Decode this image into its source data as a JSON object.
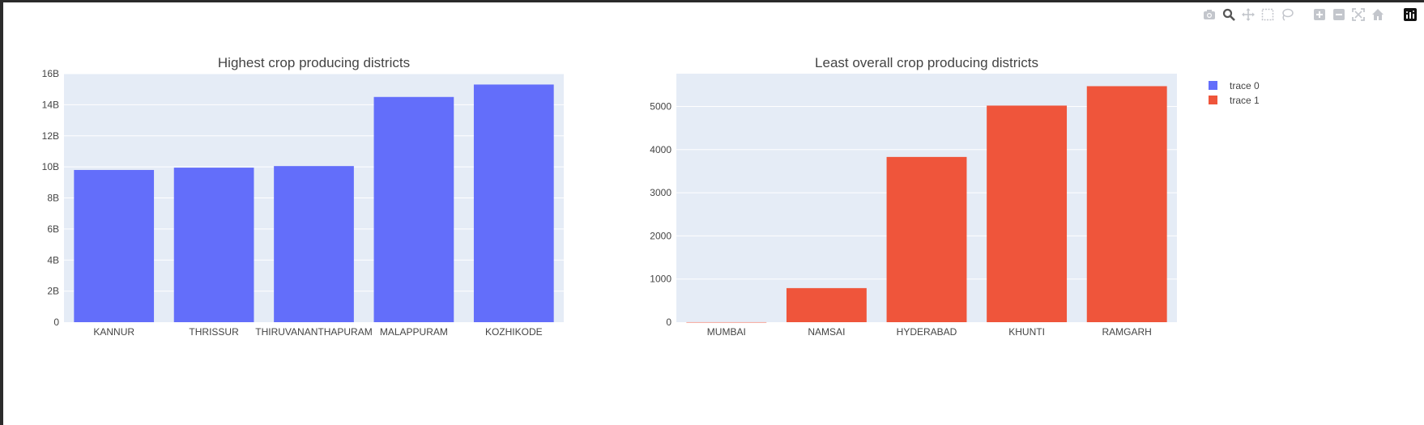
{
  "modebar": {
    "icons": [
      "camera-icon",
      "zoom-icon",
      "pan-icon",
      "box-select-icon",
      "lasso-select-icon",
      "zoom-in-icon",
      "zoom-out-icon",
      "autoscale-icon",
      "home-icon",
      "plotly-logo-icon"
    ]
  },
  "chart_data": [
    {
      "type": "bar",
      "title": "Highest crop producing districts",
      "categories": [
        "KANNUR",
        "THRISSUR",
        "THIRUVANANTHAPURAM",
        "MALAPPURAM",
        "KOZHIKODE"
      ],
      "values": [
        9800000000,
        9950000000,
        10050000000,
        14500000000,
        15300000000
      ],
      "ylim": [
        0,
        16000000000
      ],
      "yticks": [
        0,
        2000000000,
        4000000000,
        6000000000,
        8000000000,
        10000000000,
        12000000000,
        14000000000,
        16000000000
      ],
      "ytick_labels": [
        "0",
        "2B",
        "4B",
        "6B",
        "8B",
        "10B",
        "12B",
        "14B",
        "16B"
      ],
      "color": "#636efa",
      "grid": true,
      "xlabel": "",
      "ylabel": ""
    },
    {
      "type": "bar",
      "title": "Least overall crop producing districts",
      "categories": [
        "MUMBAI",
        "NAMSAI",
        "HYDERABAD",
        "KHUNTI",
        "RAMGARH"
      ],
      "values": [
        1,
        790,
        3830,
        5020,
        5470
      ],
      "ylim": [
        0,
        5760
      ],
      "yticks": [
        0,
        1000,
        2000,
        3000,
        4000,
        5000
      ],
      "ytick_labels": [
        "0",
        "1000",
        "2000",
        "3000",
        "4000",
        "5000"
      ],
      "color": "#ef553b",
      "grid": true,
      "xlabel": "",
      "ylabel": ""
    }
  ],
  "legend": {
    "placement": "top-right",
    "items": [
      {
        "name": "trace 0",
        "color": "#636efa"
      },
      {
        "name": "trace 1",
        "color": "#ef553b"
      }
    ]
  }
}
